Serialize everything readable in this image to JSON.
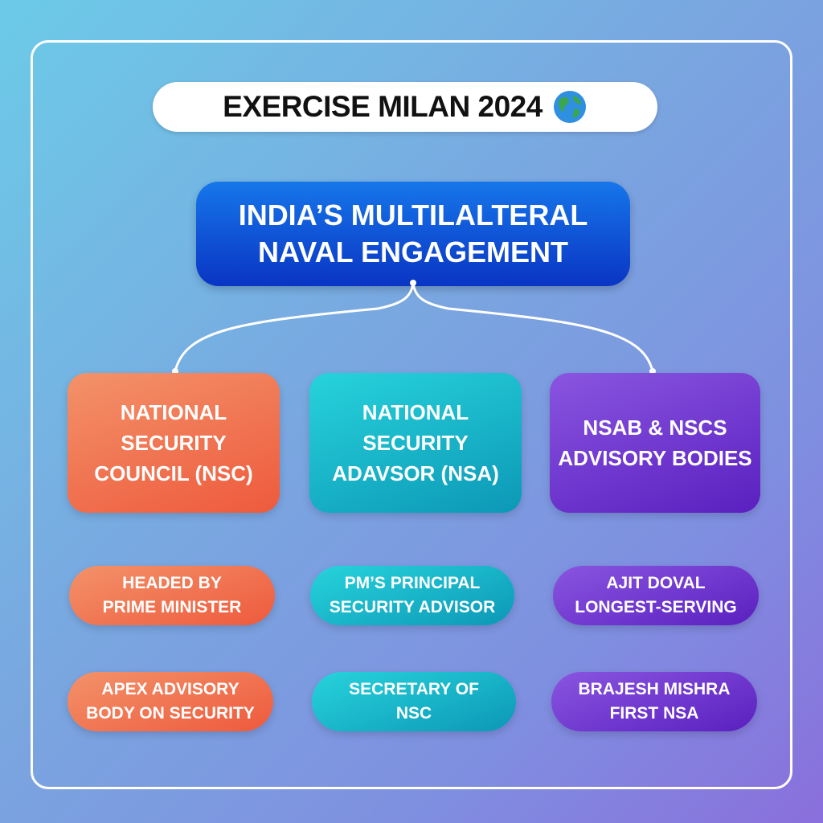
{
  "title": {
    "text": "EXERCISE MILAN 2024",
    "icon": "globe-icon"
  },
  "main": {
    "line1": "INDIA’S MULTILALTERAL",
    "line2": "NAVAL ENGAGEMENT",
    "color": "#0a4fdc"
  },
  "columns": [
    {
      "color": "#ef6b48",
      "card": [
        "NATIONAL SECURITY",
        "COUNCIL (NSC)"
      ],
      "pills": [
        [
          "HEADED BY",
          "PRIME MINISTER"
        ],
        [
          "APEX ADVISORY",
          "BODY ON SECURITY"
        ]
      ]
    },
    {
      "color": "#16b3c8",
      "card": [
        "NATIONAL SECURITY",
        "ADAVSOR (NSA)"
      ],
      "pills": [
        [
          "PM’S PRINCIPAL",
          "SECURITY ADVISOR"
        ],
        [
          "SECRETARY OF",
          "NSC"
        ]
      ]
    },
    {
      "color": "#6f37d0",
      "card": [
        "NSAB & NSCS",
        "ADVISORY BODIES"
      ],
      "pills": [
        [
          "AJIT DOVAL",
          "LONGEST-SERVING"
        ],
        [
          "BRAJESH MISHRA",
          "FIRST NSA"
        ]
      ]
    }
  ]
}
